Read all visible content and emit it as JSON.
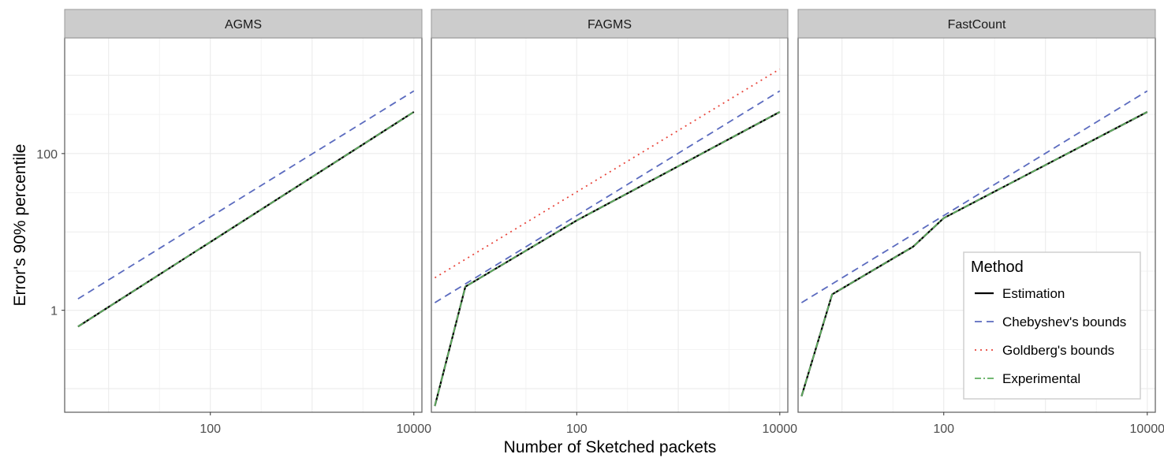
{
  "chart_data": {
    "type": "line",
    "facets": [
      {
        "title": "AGMS"
      },
      {
        "title": "FAGMS"
      },
      {
        "title": "FastCount"
      }
    ],
    "xlabel": "Number of Sketched packets",
    "ylabel": "Error's 90% percentile",
    "xscale": "log10",
    "yscale": "log10",
    "xlim": [
      3.7,
      12000
    ],
    "ylim": [
      0.05,
      3000
    ],
    "x_ticks": [
      100,
      10000
    ],
    "x_tick_labels": [
      "100",
      "10000"
    ],
    "y_ticks": [
      1,
      100
    ],
    "y_tick_labels": [
      "1",
      "100"
    ],
    "grid": true,
    "legend": {
      "title": "Method",
      "position": "inside-bottom-right of last panel",
      "entries": [
        "Estimation",
        "Chebyshev's bounds",
        "Goldberg's bounds",
        "Experimental"
      ]
    },
    "colors": {
      "Estimation": "#000000",
      "Chebyshev's bounds": "#5b6bbf",
      "Goldberg's bounds": "#e8443a",
      "Experimental": "#5fae5f",
      "strip": "#cccccc",
      "panel_border": "#666666",
      "grid": "#ebebeb"
    },
    "series": [
      {
        "facet": "AGMS",
        "name": "Chebyshev's bounds",
        "style": "dashed",
        "x": [
          5,
          10000
        ],
        "y": [
          1.4,
          630
        ]
      },
      {
        "facet": "AGMS",
        "name": "Estimation",
        "style": "solid",
        "x": [
          5,
          10000
        ],
        "y": [
          0.62,
          340
        ]
      },
      {
        "facet": "AGMS",
        "name": "Experimental",
        "style": "dashdot",
        "x": [
          5,
          10000
        ],
        "y": [
          0.62,
          340
        ]
      },
      {
        "facet": "FAGMS",
        "name": "Goldberg's bounds",
        "style": "dotted",
        "x": [
          4,
          10000
        ],
        "y": [
          2.6,
          1200
        ]
      },
      {
        "facet": "FAGMS",
        "name": "Chebyshev's bounds",
        "style": "dashed",
        "x": [
          4,
          10000
        ],
        "y": [
          1.25,
          630
        ]
      },
      {
        "facet": "FAGMS",
        "name": "Estimation",
        "style": "solid",
        "x": [
          4,
          8,
          100,
          10000
        ],
        "y": [
          0.06,
          2.0,
          14,
          340
        ]
      },
      {
        "facet": "FAGMS",
        "name": "Experimental",
        "style": "dashdot",
        "x": [
          4,
          8,
          100,
          10000
        ],
        "y": [
          0.06,
          2.0,
          14,
          340
        ]
      },
      {
        "facet": "FastCount",
        "name": "Chebyshev's bounds",
        "style": "dashed",
        "x": [
          4,
          10000
        ],
        "y": [
          1.25,
          630
        ]
      },
      {
        "facet": "FastCount",
        "name": "Estimation",
        "style": "solid",
        "x": [
          4,
          8,
          50,
          100,
          10000
        ],
        "y": [
          0.08,
          1.6,
          6.5,
          15,
          340
        ]
      },
      {
        "facet": "FastCount",
        "name": "Experimental",
        "style": "dashdot",
        "x": [
          4,
          8,
          50,
          100,
          10000
        ],
        "y": [
          0.08,
          1.6,
          6.5,
          15,
          340
        ]
      }
    ]
  }
}
